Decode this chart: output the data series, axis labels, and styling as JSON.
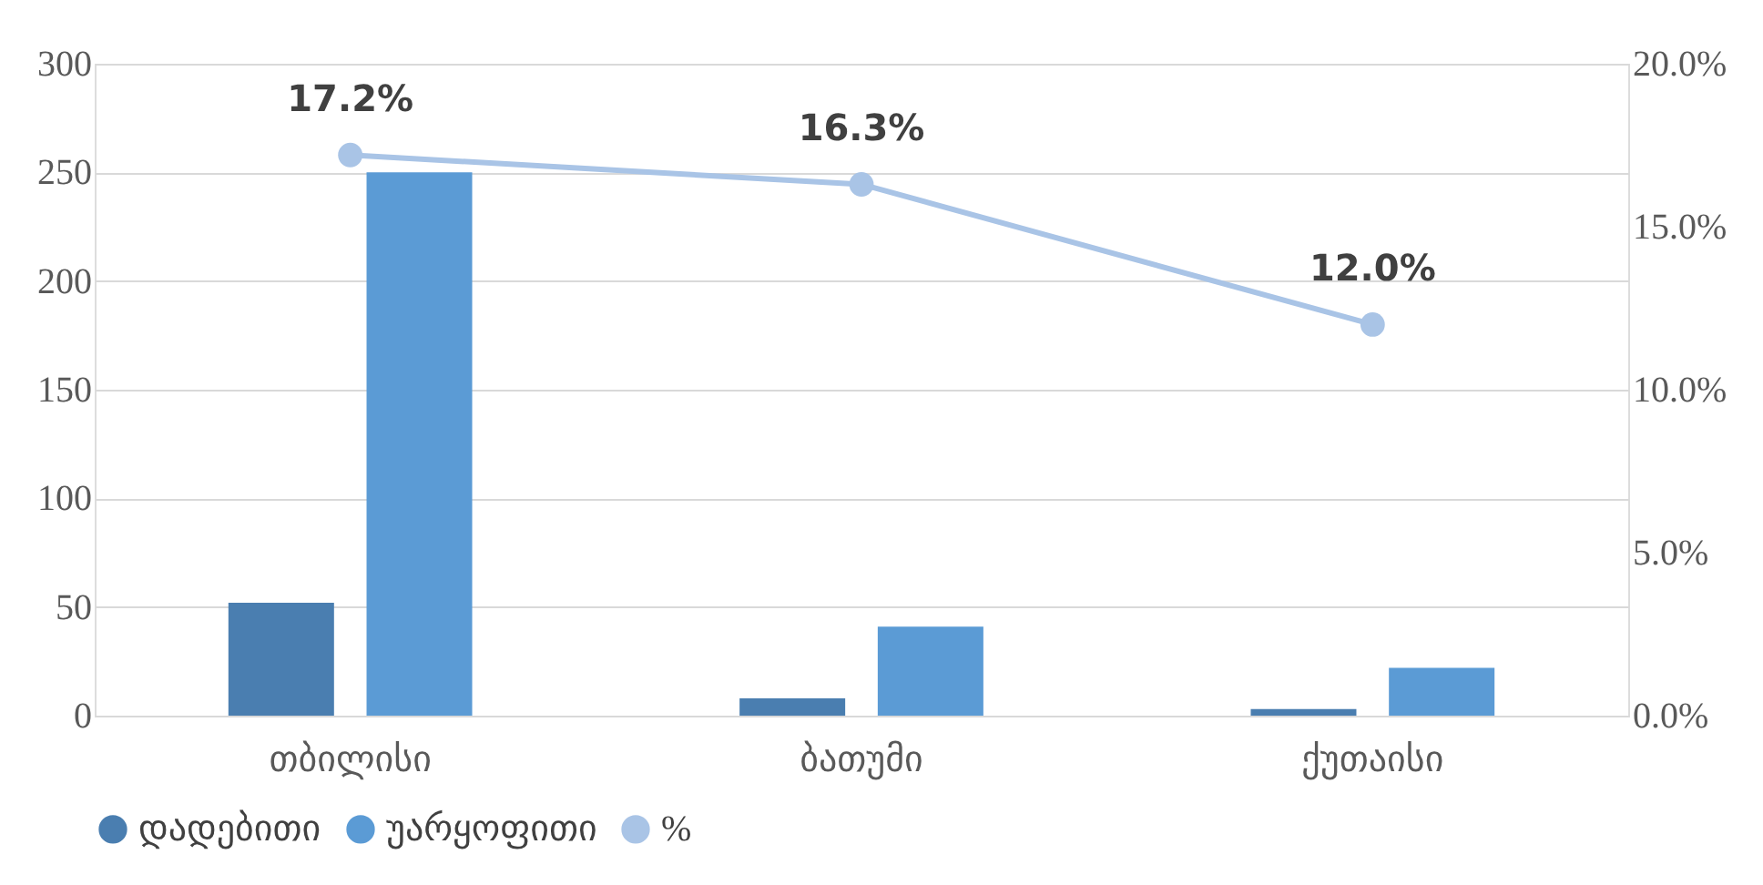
{
  "chart_data": {
    "type": "bar",
    "categories": [
      "თბილისი",
      "ბათუმი",
      "ქუთაისი"
    ],
    "series": [
      {
        "name": "დადებითი",
        "color": "#4a7eb0",
        "values": [
          52,
          8,
          3
        ]
      },
      {
        "name": "უარყოფითი",
        "color": "#5b9bd5",
        "values": [
          250,
          41,
          22
        ]
      },
      {
        "name": "%",
        "color": "#a9c4e6",
        "type": "line",
        "axis": "y2",
        "marker": "circle",
        "values": [
          17.2,
          16.3,
          12.0
        ],
        "value_labels": [
          "17.2%",
          "16.3%",
          "12.0%"
        ]
      }
    ],
    "ylim": [
      0,
      300
    ],
    "yticks": [
      0,
      50,
      100,
      150,
      200,
      250,
      300
    ],
    "y2lim": [
      0,
      20
    ],
    "y2ticks": [
      {
        "value": 0,
        "label": "0.0%"
      },
      {
        "value": 5,
        "label": "5.0%"
      },
      {
        "value": 10,
        "label": "10.0%"
      },
      {
        "value": 15,
        "label": "15.0%"
      },
      {
        "value": 20,
        "label": "20.0%"
      }
    ],
    "grid": "y",
    "legend": "bottom"
  }
}
